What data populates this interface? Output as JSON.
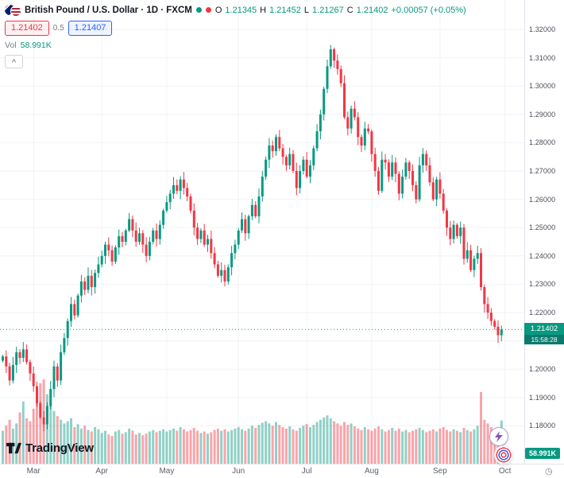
{
  "header": {
    "symbol_title": "British Pound / U.S. Dollar · 1D · FXCM",
    "ohlc": {
      "o_label": "O",
      "o": "1.21345",
      "h_label": "H",
      "h": "1.21452",
      "l_label": "L",
      "l": "1.21267",
      "c_label": "C",
      "c": "1.21402",
      "change": "+0.00057 (+0.05%)"
    },
    "bid": "1.21402",
    "spread": "0.5",
    "ask": "1.21407",
    "vol_label": "Vol",
    "vol_value": "58.991K"
  },
  "icons": {
    "collapse": "^",
    "clock": "◷"
  },
  "price_scale": {
    "current_price": "1.21402",
    "countdown": "15:58:28",
    "volume_badge": "58.991K"
  },
  "branding": {
    "logo_text": "TradingView"
  },
  "colors": {
    "up": "#089981",
    "down": "#F23645",
    "accent_blue": "#2962FF"
  },
  "chart_data": {
    "type": "candlestick",
    "title": "British Pound / U.S. Dollar",
    "timeframe": "1D",
    "exchange": "FXCM",
    "legend_position": "top-left",
    "grid": true,
    "y_axis_side": "right",
    "y_tick_decimals": 5,
    "y_ticks": [
      1.32,
      1.31,
      1.3,
      1.29,
      1.28,
      1.27,
      1.26,
      1.25,
      1.24,
      1.23,
      1.22,
      1.21,
      1.2,
      1.19,
      1.18
    ],
    "months": [
      "Mar",
      "Apr",
      "May",
      "Jun",
      "Jul",
      "Aug",
      "Sep",
      "Oct"
    ],
    "month_start_indices": [
      9,
      29,
      48,
      69,
      89,
      108,
      128,
      147
    ],
    "first_open": 1.203,
    "current_price": 1.21402,
    "countdown": "15:58:28",
    "ohlc_last": {
      "open": 1.21345,
      "high": 1.21452,
      "low": 1.21267,
      "close": 1.21402,
      "change": 0.00057,
      "change_pct": 0.05
    },
    "closes": [
      1.2045,
      1.201,
      1.196,
      1.2015,
      1.206,
      1.204,
      1.207,
      1.2025,
      1.1985,
      1.194,
      1.188,
      1.183,
      1.1805,
      1.187,
      1.193,
      1.201,
      1.196,
      1.206,
      1.211,
      1.217,
      1.223,
      1.219,
      1.226,
      1.231,
      1.228,
      1.233,
      1.229,
      1.234,
      1.237,
      1.24,
      1.244,
      1.242,
      1.238,
      1.243,
      1.247,
      1.245,
      1.249,
      1.253,
      1.249,
      1.245,
      1.248,
      1.244,
      1.24,
      1.245,
      1.249,
      1.246,
      1.251,
      1.256,
      1.259,
      1.262,
      1.265,
      1.263,
      1.267,
      1.264,
      1.261,
      1.256,
      1.25,
      1.246,
      1.249,
      1.244,
      1.246,
      1.241,
      1.237,
      1.233,
      1.235,
      1.231,
      1.236,
      1.241,
      1.244,
      1.249,
      1.253,
      1.248,
      1.254,
      1.258,
      1.254,
      1.261,
      1.268,
      1.274,
      1.279,
      1.277,
      1.282,
      1.278,
      1.275,
      1.272,
      1.276,
      1.27,
      1.264,
      1.27,
      1.274,
      1.268,
      1.272,
      1.278,
      1.284,
      1.29,
      1.299,
      1.307,
      1.313,
      1.309,
      1.306,
      1.301,
      1.289,
      1.285,
      1.292,
      1.289,
      1.282,
      1.279,
      1.285,
      1.284,
      1.276,
      1.27,
      1.263,
      1.274,
      1.273,
      1.268,
      1.273,
      1.269,
      1.262,
      1.268,
      1.273,
      1.27,
      1.265,
      1.26,
      1.272,
      1.276,
      1.272,
      1.266,
      1.26,
      1.267,
      1.262,
      1.256,
      1.25,
      1.246,
      1.251,
      1.247,
      1.25,
      1.239,
      1.242,
      1.235,
      1.239,
      1.241,
      1.229,
      1.223,
      1.22,
      1.217,
      1.215,
      1.212,
      1.214
    ],
    "volumes_k": [
      45,
      52,
      60,
      48,
      55,
      70,
      85,
      62,
      58,
      75,
      90,
      110,
      115,
      95,
      80,
      72,
      65,
      60,
      55,
      58,
      62,
      50,
      54,
      48,
      52,
      46,
      44,
      50,
      47,
      42,
      45,
      40,
      38,
      44,
      46,
      41,
      43,
      48,
      45,
      40,
      42,
      39,
      41,
      44,
      46,
      43,
      45,
      47,
      44,
      46,
      48,
      45,
      50,
      47,
      44,
      46,
      49,
      45,
      42,
      44,
      41,
      43,
      46,
      48,
      45,
      47,
      44,
      46,
      48,
      50,
      47,
      45,
      48,
      52,
      49,
      53,
      56,
      58,
      55,
      52,
      57,
      53,
      50,
      48,
      51,
      47,
      45,
      49,
      52,
      54,
      50,
      53,
      57,
      60,
      63,
      66,
      62,
      58,
      55,
      52,
      57,
      53,
      55,
      51,
      48,
      46,
      50,
      47,
      45,
      48,
      51,
      47,
      44,
      46,
      49,
      45,
      48,
      44,
      46,
      43,
      45,
      47,
      49,
      46,
      43,
      45,
      47,
      44,
      48,
      50,
      46,
      44,
      47,
      45,
      43,
      49,
      46,
      44,
      47,
      52,
      98,
      60,
      55,
      50,
      47,
      45,
      58.991
    ],
    "last_volume_label": "58.991K"
  }
}
